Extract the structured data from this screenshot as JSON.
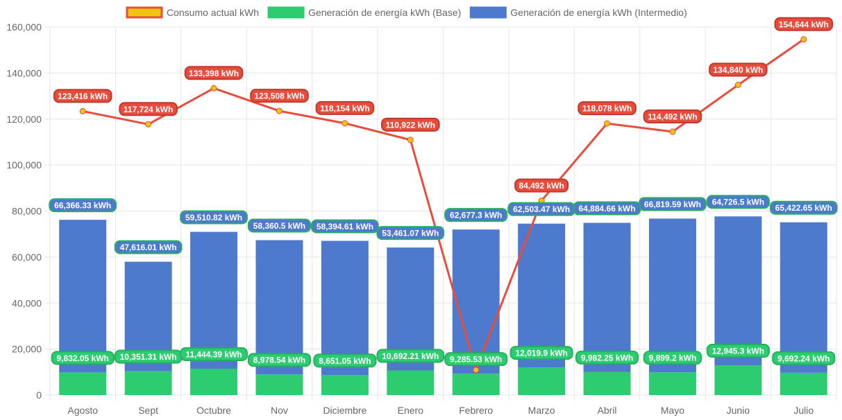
{
  "chart_data": {
    "type": "bar",
    "title": "",
    "xlabel": "",
    "ylabel": "",
    "ylim": [
      0,
      160000
    ],
    "y_ticks": [
      "0",
      "20,000",
      "40,000",
      "60,000",
      "80,000",
      "100,000",
      "120,000",
      "140,000",
      "160,000"
    ],
    "y_tick_values": [
      0,
      20000,
      40000,
      60000,
      80000,
      100000,
      120000,
      140000,
      160000
    ],
    "grid": true,
    "stacked": true,
    "legend_position": "top",
    "unit_suffix": " kWh",
    "categories": [
      "Agosto",
      "Sept",
      "Octubre",
      "Nov",
      "Diciembre",
      "Enero",
      "Febrero",
      "Marzo",
      "Abril",
      "Mayo",
      "Junio",
      "Julio"
    ],
    "series": [
      {
        "name": "Consumo actual kWh",
        "type": "line",
        "color": "#e74c3c",
        "point_color": "#f1c40f",
        "values": [
          123416,
          117724,
          133398,
          123508,
          118154,
          110922,
          10880,
          84492,
          118078,
          114492,
          134840,
          154644
        ],
        "labels": [
          "123,416 kWh",
          "117,724 kWh",
          "133,398 kWh",
          "123,508 kWh",
          "118,154 kWh",
          "110,922 kWh",
          "",
          "84,492 kWh",
          "118,078 kWh",
          "114,492 kWh",
          "134,840 kWh",
          "154,644 kWh"
        ]
      },
      {
        "name": "Generación de energía kWh (Base)",
        "type": "bar",
        "color": "#2ecc71",
        "values": [
          9832.05,
          10351.31,
          11444.39,
          8978.54,
          8651.05,
          10692.21,
          9285.53,
          12019.9,
          9982.25,
          9899.2,
          12945.3,
          9692.24
        ],
        "labels": [
          "9,832.05 kWh",
          "10,351.31 kWh",
          "11,444.39 kWh",
          "8,978.54 kWh",
          "8,651.05 kWh",
          "10,692.21 kWh",
          "9,285.53 kWh",
          "12,019.9 kWh",
          "9,982.25 kWh",
          "9,899.2 kWh",
          "12,945.3 kWh",
          "9,692.24 kWh"
        ]
      },
      {
        "name": "Generación de energía kWh (Intermedio)",
        "type": "bar",
        "color": "#4e7acd",
        "values": [
          66366.33,
          47616.01,
          59510.82,
          58360.5,
          58394.61,
          53461.07,
          62677.3,
          62503.47,
          64884.66,
          66819.59,
          64726.5,
          65422.65
        ],
        "labels": [
          "66,366.33 kWh",
          "47,616.01 kWh",
          "59,510.82 kWh",
          "58,360.5 kWh",
          "58,394.61 kWh",
          "53,461.07 kWh",
          "62,677.3 kWh",
          "62,503.47 kWh",
          "64,884.66 kWh",
          "66,819.59 kWh",
          "64,726.5 kWh",
          "65,422.65 kWh"
        ]
      }
    ],
    "legend": [
      {
        "label": "Consumo actual kWh",
        "fill": "#f1c40f",
        "border": "#e74c3c"
      },
      {
        "label": "Generación de energía kWh (Base)",
        "fill": "#2ecc71",
        "border": "#2ecc71"
      },
      {
        "label": "Generación de energía kWh (Intermedio)",
        "fill": "#4e7acd",
        "border": "#4e7acd"
      }
    ]
  }
}
